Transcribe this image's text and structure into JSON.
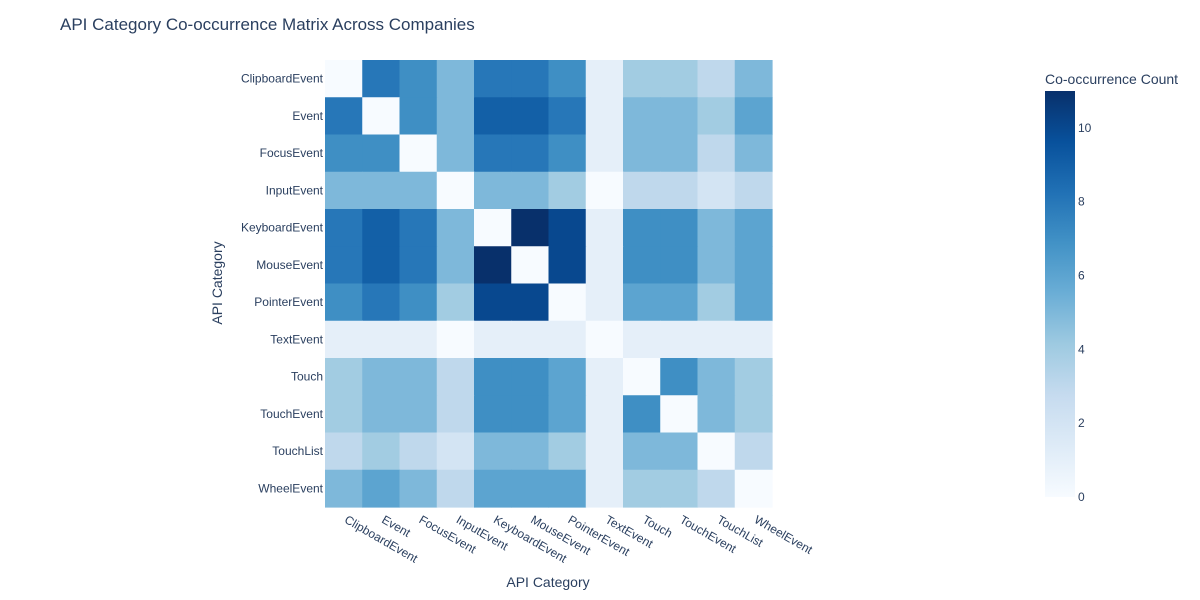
{
  "chart_data": {
    "type": "heatmap",
    "title": "API Category Co-occurrence Matrix Across Companies",
    "xlabel": "API Category",
    "ylabel": "API Category",
    "categories": [
      "ClipboardEvent",
      "Event",
      "FocusEvent",
      "InputEvent",
      "KeyboardEvent",
      "MouseEvent",
      "PointerEvent",
      "TextEvent",
      "Touch",
      "TouchEvent",
      "TouchList",
      "WheelEvent"
    ],
    "values": [
      [
        0,
        8,
        7,
        5,
        8,
        8,
        7,
        1,
        4,
        4,
        3,
        5
      ],
      [
        8,
        0,
        7,
        5,
        9,
        9,
        8,
        1,
        5,
        5,
        4,
        6
      ],
      [
        7,
        7,
        0,
        5,
        8,
        8,
        7,
        1,
        5,
        5,
        3,
        5
      ],
      [
        5,
        5,
        5,
        0,
        5,
        5,
        4,
        0,
        3,
        3,
        2,
        3
      ],
      [
        8,
        9,
        8,
        5,
        0,
        11,
        10,
        1,
        7,
        7,
        5,
        6
      ],
      [
        8,
        9,
        8,
        5,
        11,
        0,
        10,
        1,
        7,
        7,
        5,
        6
      ],
      [
        7,
        8,
        7,
        4,
        10,
        10,
        0,
        1,
        6,
        6,
        4,
        6
      ],
      [
        1,
        1,
        1,
        0,
        1,
        1,
        1,
        0,
        1,
        1,
        1,
        1
      ],
      [
        4,
        5,
        5,
        3,
        7,
        7,
        6,
        1,
        0,
        7,
        5,
        4
      ],
      [
        4,
        5,
        5,
        3,
        7,
        7,
        6,
        1,
        7,
        0,
        5,
        4
      ],
      [
        3,
        4,
        3,
        2,
        5,
        5,
        4,
        1,
        5,
        5,
        0,
        3
      ],
      [
        5,
        6,
        5,
        3,
        6,
        6,
        6,
        1,
        4,
        4,
        3,
        0
      ]
    ],
    "colorscale": "Blues",
    "zmin": 0,
    "zmax": 11,
    "colorbar": {
      "title": "Co-occurrence Count",
      "ticks": [
        0,
        2,
        4,
        6,
        8,
        10
      ]
    }
  }
}
